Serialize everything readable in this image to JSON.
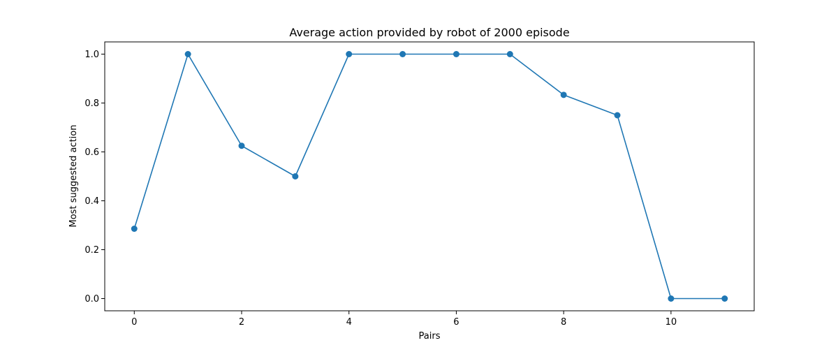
{
  "chart_data": {
    "type": "line",
    "title": "Average action provided by robot of 2000 episode",
    "xlabel": "Pairs",
    "ylabel": "Most suggested action",
    "x": [
      0,
      1,
      2,
      3,
      4,
      5,
      6,
      7,
      8,
      9,
      10,
      11
    ],
    "series": [
      {
        "values": [
          0.2857,
          1.0,
          0.625,
          0.5,
          1.0,
          1.0,
          1.0,
          1.0,
          0.8333,
          0.75,
          0.0,
          0.0
        ]
      }
    ],
    "xlim": [
      -0.55,
      11.55
    ],
    "ylim": [
      -0.05,
      1.05
    ],
    "xticks": [
      0,
      2,
      4,
      6,
      8,
      10
    ],
    "xtick_labels": [
      "0",
      "2",
      "4",
      "6",
      "8",
      "10"
    ],
    "yticks": [
      0.0,
      0.2,
      0.4,
      0.6,
      0.8,
      1.0
    ],
    "ytick_labels": [
      "0.0",
      "0.2",
      "0.4",
      "0.6",
      "0.8",
      "1.0"
    ],
    "grid": false,
    "marker": "circle",
    "colors": {
      "line": "#1f77b4",
      "axes": "#000000",
      "background": "#ffffff"
    }
  }
}
